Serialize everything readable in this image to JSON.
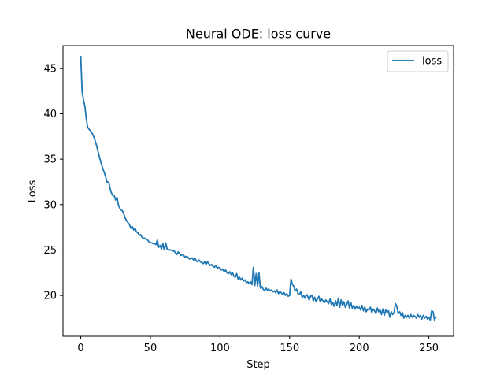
{
  "chart_data": {
    "type": "line",
    "title": "Neural ODE: loss curve",
    "xlabel": "Step",
    "ylabel": "Loss",
    "xlim": [
      -12.75,
      267.75
    ],
    "ylim": [
      15.5,
      47.5
    ],
    "xticks": [
      0,
      50,
      100,
      150,
      200,
      250
    ],
    "yticks": [
      20,
      25,
      30,
      35,
      40,
      45
    ],
    "grid": false,
    "legend_position": "top-right",
    "series": [
      {
        "name": "loss",
        "color": "#1f77b4",
        "points": [
          [
            0,
            46.3
          ],
          [
            1,
            42.4
          ],
          [
            2,
            41.5
          ],
          [
            3,
            40.8
          ],
          [
            4,
            39.4
          ],
          [
            5,
            38.5
          ],
          [
            6,
            38.3
          ],
          [
            7,
            38.1
          ],
          [
            8,
            37.9
          ],
          [
            9,
            37.6
          ],
          [
            10,
            37.2
          ],
          [
            11,
            36.7
          ],
          [
            12,
            36.1
          ],
          [
            13,
            35.5
          ],
          [
            14,
            34.9
          ],
          [
            15,
            34.4
          ],
          [
            16,
            33.9
          ],
          [
            17,
            33.5
          ],
          [
            18,
            33.0
          ],
          [
            19,
            32.4
          ],
          [
            20,
            32.5
          ],
          [
            21,
            31.8
          ],
          [
            22,
            31.3
          ],
          [
            23,
            31.0
          ],
          [
            24,
            31.0
          ],
          [
            25,
            30.5
          ],
          [
            26,
            30.8
          ],
          [
            27,
            30.0
          ],
          [
            28,
            29.6
          ],
          [
            29,
            29.4
          ],
          [
            30,
            29.3
          ],
          [
            31,
            28.9
          ],
          [
            32,
            28.5
          ],
          [
            33,
            28.2
          ],
          [
            34,
            28.0
          ],
          [
            35,
            27.8
          ],
          [
            36,
            27.4
          ],
          [
            37,
            27.6
          ],
          [
            38,
            27.2
          ],
          [
            39,
            27.4
          ],
          [
            40,
            27.0
          ],
          [
            41,
            26.9
          ],
          [
            42,
            26.6
          ],
          [
            43,
            26.7
          ],
          [
            44,
            26.4
          ],
          [
            45,
            26.3
          ],
          [
            46,
            26.3
          ],
          [
            47,
            26.2
          ],
          [
            48,
            26.1
          ],
          [
            49,
            25.9
          ],
          [
            50,
            25.8
          ],
          [
            51,
            25.8
          ],
          [
            52,
            25.7
          ],
          [
            53,
            25.7
          ],
          [
            54,
            25.6
          ],
          [
            55,
            26.1
          ],
          [
            56,
            25.3
          ],
          [
            57,
            25.5
          ],
          [
            58,
            25.1
          ],
          [
            59,
            25.7
          ],
          [
            60,
            25.0
          ],
          [
            61,
            25.8
          ],
          [
            62,
            25.1
          ],
          [
            63,
            25.0
          ],
          [
            64,
            25.0
          ],
          [
            65,
            25.0
          ],
          [
            66,
            24.9
          ],
          [
            67,
            24.9
          ],
          [
            68,
            24.7
          ],
          [
            69,
            24.5
          ],
          [
            70,
            24.8
          ],
          [
            71,
            24.6
          ],
          [
            72,
            24.4
          ],
          [
            73,
            24.5
          ],
          [
            74,
            24.4
          ],
          [
            75,
            24.2
          ],
          [
            76,
            24.3
          ],
          [
            77,
            24.2
          ],
          [
            78,
            24.0
          ],
          [
            79,
            24.1
          ],
          [
            80,
            24.1
          ],
          [
            81,
            23.9
          ],
          [
            82,
            24.1
          ],
          [
            83,
            23.8
          ],
          [
            84,
            23.7
          ],
          [
            85,
            23.9
          ],
          [
            86,
            23.7
          ],
          [
            87,
            23.6
          ],
          [
            88,
            23.5
          ],
          [
            89,
            23.7
          ],
          [
            90,
            23.4
          ],
          [
            91,
            23.7
          ],
          [
            92,
            23.5
          ],
          [
            93,
            23.3
          ],
          [
            94,
            23.4
          ],
          [
            95,
            23.2
          ],
          [
            96,
            23.1
          ],
          [
            97,
            23.3
          ],
          [
            98,
            23.0
          ],
          [
            99,
            23.1
          ],
          [
            100,
            23.0
          ],
          [
            101,
            22.8
          ],
          [
            102,
            22.9
          ],
          [
            103,
            22.6
          ],
          [
            104,
            22.8
          ],
          [
            105,
            22.5
          ],
          [
            106,
            22.4
          ],
          [
            107,
            22.6
          ],
          [
            108,
            22.3
          ],
          [
            109,
            22.5
          ],
          [
            110,
            22.1
          ],
          [
            111,
            22.0
          ],
          [
            112,
            22.4
          ],
          [
            113,
            21.8
          ],
          [
            114,
            22.0
          ],
          [
            115,
            21.7
          ],
          [
            116,
            21.9
          ],
          [
            117,
            21.6
          ],
          [
            118,
            21.7
          ],
          [
            119,
            21.4
          ],
          [
            120,
            21.5
          ],
          [
            121,
            21.3
          ],
          [
            122,
            21.5
          ],
          [
            123,
            21.2
          ],
          [
            124,
            23.1
          ],
          [
            125,
            21.1
          ],
          [
            126,
            22.4
          ],
          [
            127,
            21.0
          ],
          [
            128,
            22.5
          ],
          [
            129,
            20.8
          ],
          [
            130,
            21.0
          ],
          [
            131,
            20.7
          ],
          [
            132,
            20.5
          ],
          [
            133,
            20.8
          ],
          [
            134,
            20.6
          ],
          [
            135,
            20.7
          ],
          [
            136,
            20.5
          ],
          [
            137,
            20.6
          ],
          [
            138,
            20.4
          ],
          [
            139,
            20.5
          ],
          [
            140,
            20.3
          ],
          [
            141,
            20.6
          ],
          [
            142,
            20.2
          ],
          [
            143,
            20.4
          ],
          [
            144,
            20.3
          ],
          [
            145,
            20.1
          ],
          [
            146,
            20.3
          ],
          [
            147,
            20.0
          ],
          [
            148,
            20.2
          ],
          [
            149,
            19.9
          ],
          [
            150,
            20.0
          ],
          [
            151,
            21.8
          ],
          [
            152,
            21.2
          ],
          [
            153,
            21.0
          ],
          [
            154,
            20.5
          ],
          [
            155,
            20.7
          ],
          [
            156,
            20.2
          ],
          [
            157,
            20.1
          ],
          [
            158,
            20.4
          ],
          [
            159,
            19.8
          ],
          [
            160,
            20.0
          ],
          [
            161,
            19.7
          ],
          [
            162,
            20.1
          ],
          [
            163,
            19.9
          ],
          [
            164,
            19.5
          ],
          [
            165,
            19.9
          ],
          [
            166,
            20.0
          ],
          [
            167,
            19.4
          ],
          [
            168,
            19.8
          ],
          [
            169,
            19.3
          ],
          [
            170,
            19.6
          ],
          [
            171,
            19.9
          ],
          [
            172,
            19.3
          ],
          [
            173,
            19.6
          ],
          [
            174,
            19.4
          ],
          [
            175,
            19.2
          ],
          [
            176,
            19.5
          ],
          [
            177,
            19.3
          ],
          [
            178,
            19.1
          ],
          [
            179,
            19.6
          ],
          [
            180,
            19.0
          ],
          [
            181,
            19.2
          ],
          [
            182,
            18.8
          ],
          [
            183,
            19.4
          ],
          [
            184,
            18.9
          ],
          [
            185,
            19.7
          ],
          [
            186,
            18.7
          ],
          [
            187,
            19.5
          ],
          [
            188,
            18.9
          ],
          [
            189,
            19.3
          ],
          [
            190,
            18.7
          ],
          [
            191,
            19.0
          ],
          [
            192,
            19.4
          ],
          [
            193,
            18.6
          ],
          [
            194,
            19.2
          ],
          [
            195,
            18.6
          ],
          [
            196,
            18.9
          ],
          [
            197,
            18.5
          ],
          [
            198,
            18.8
          ],
          [
            199,
            18.6
          ],
          [
            200,
            18.7
          ],
          [
            201,
            18.4
          ],
          [
            202,
            18.9
          ],
          [
            203,
            18.3
          ],
          [
            204,
            18.7
          ],
          [
            205,
            18.2
          ],
          [
            206,
            18.5
          ],
          [
            207,
            18.4
          ],
          [
            208,
            18.7
          ],
          [
            209,
            18.1
          ],
          [
            210,
            18.5
          ],
          [
            211,
            18.3
          ],
          [
            212,
            18.0
          ],
          [
            213,
            18.6
          ],
          [
            214,
            18.2
          ],
          [
            215,
            18.4
          ],
          [
            216,
            17.9
          ],
          [
            217,
            18.5
          ],
          [
            218,
            17.8
          ],
          [
            219,
            18.4
          ],
          [
            220,
            18.1
          ],
          [
            221,
            18.3
          ],
          [
            222,
            17.6
          ],
          [
            223,
            18.2
          ],
          [
            224,
            17.9
          ],
          [
            225,
            18.1
          ],
          [
            226,
            19.1
          ],
          [
            227,
            18.8
          ],
          [
            228,
            18.0
          ],
          [
            229,
            18.2
          ],
          [
            230,
            17.8
          ],
          [
            231,
            18.1
          ],
          [
            232,
            17.5
          ],
          [
            233,
            17.8
          ],
          [
            234,
            17.6
          ],
          [
            235,
            17.8
          ],
          [
            236,
            17.5
          ],
          [
            237,
            17.9
          ],
          [
            238,
            17.6
          ],
          [
            239,
            17.8
          ],
          [
            240,
            17.7
          ],
          [
            241,
            17.5
          ],
          [
            242,
            17.9
          ],
          [
            243,
            17.6
          ],
          [
            244,
            17.8
          ],
          [
            245,
            17.4
          ],
          [
            246,
            17.8
          ],
          [
            247,
            17.5
          ],
          [
            248,
            17.7
          ],
          [
            249,
            17.4
          ],
          [
            250,
            17.6
          ],
          [
            251,
            17.3
          ],
          [
            252,
            18.3
          ],
          [
            253,
            18.2
          ],
          [
            254,
            17.3
          ],
          [
            255,
            17.6
          ]
        ]
      }
    ]
  }
}
